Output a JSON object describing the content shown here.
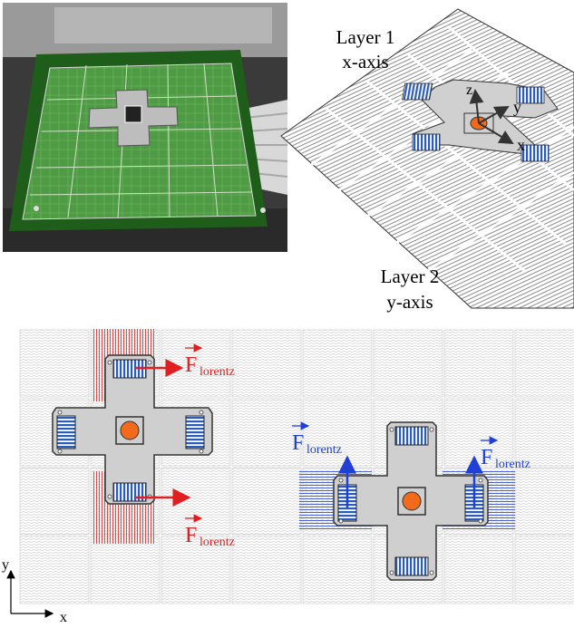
{
  "top_right": {
    "layer1": {
      "line1": "Layer 1",
      "line2": "x-axis"
    },
    "layer2": {
      "line1": "Layer 2",
      "line2": "y-axis"
    },
    "axes": {
      "z": "z",
      "y": "y",
      "x": "x"
    }
  },
  "bottom": {
    "red_force": {
      "main": "F",
      "sub": "lorentz"
    },
    "blue_force": {
      "main": "F",
      "sub": "lorentz"
    },
    "axes": {
      "y": "y",
      "x": "x"
    }
  },
  "colors": {
    "red": "#e02020",
    "blue": "#1f3fd6",
    "orange": "#f26a1b",
    "gray": "#cfcfcf",
    "board_green": "#3f8a34",
    "coil_blue": "#2c5bb8"
  },
  "icons": [
    "photo-of-pcb-board",
    "isometric-grid-layer",
    "cross-shaped-magnet-platform",
    "orange-center-mirror"
  ]
}
